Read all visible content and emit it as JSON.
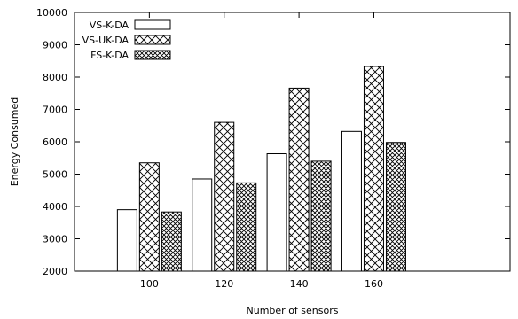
{
  "chart_data": {
    "type": "bar",
    "xlabel": "Number of sensors",
    "ylabel": "Energy Consumed",
    "ylim": [
      2000,
      10000
    ],
    "yticks": [
      2000,
      3000,
      4000,
      5000,
      6000,
      7000,
      8000,
      9000,
      10000
    ],
    "categories": [
      "100",
      "120",
      "140",
      "160"
    ],
    "series": [
      {
        "name": "VS-K-DA",
        "pattern": "none",
        "values": [
          3900,
          4850,
          5630,
          6320
        ]
      },
      {
        "name": "VS-UK-DA",
        "pattern": "cross-hatch",
        "values": [
          5350,
          6600,
          7660,
          8330
        ]
      },
      {
        "name": "FS-K-DA",
        "pattern": "dense-cross-hatch",
        "values": [
          3830,
          4730,
          5400,
          5980
        ]
      }
    ],
    "legend_position": "top-left",
    "grid": false,
    "colors": {
      "bar_stroke": "#000000",
      "bar_fill": "#ffffff",
      "background": "#ffffff"
    }
  }
}
